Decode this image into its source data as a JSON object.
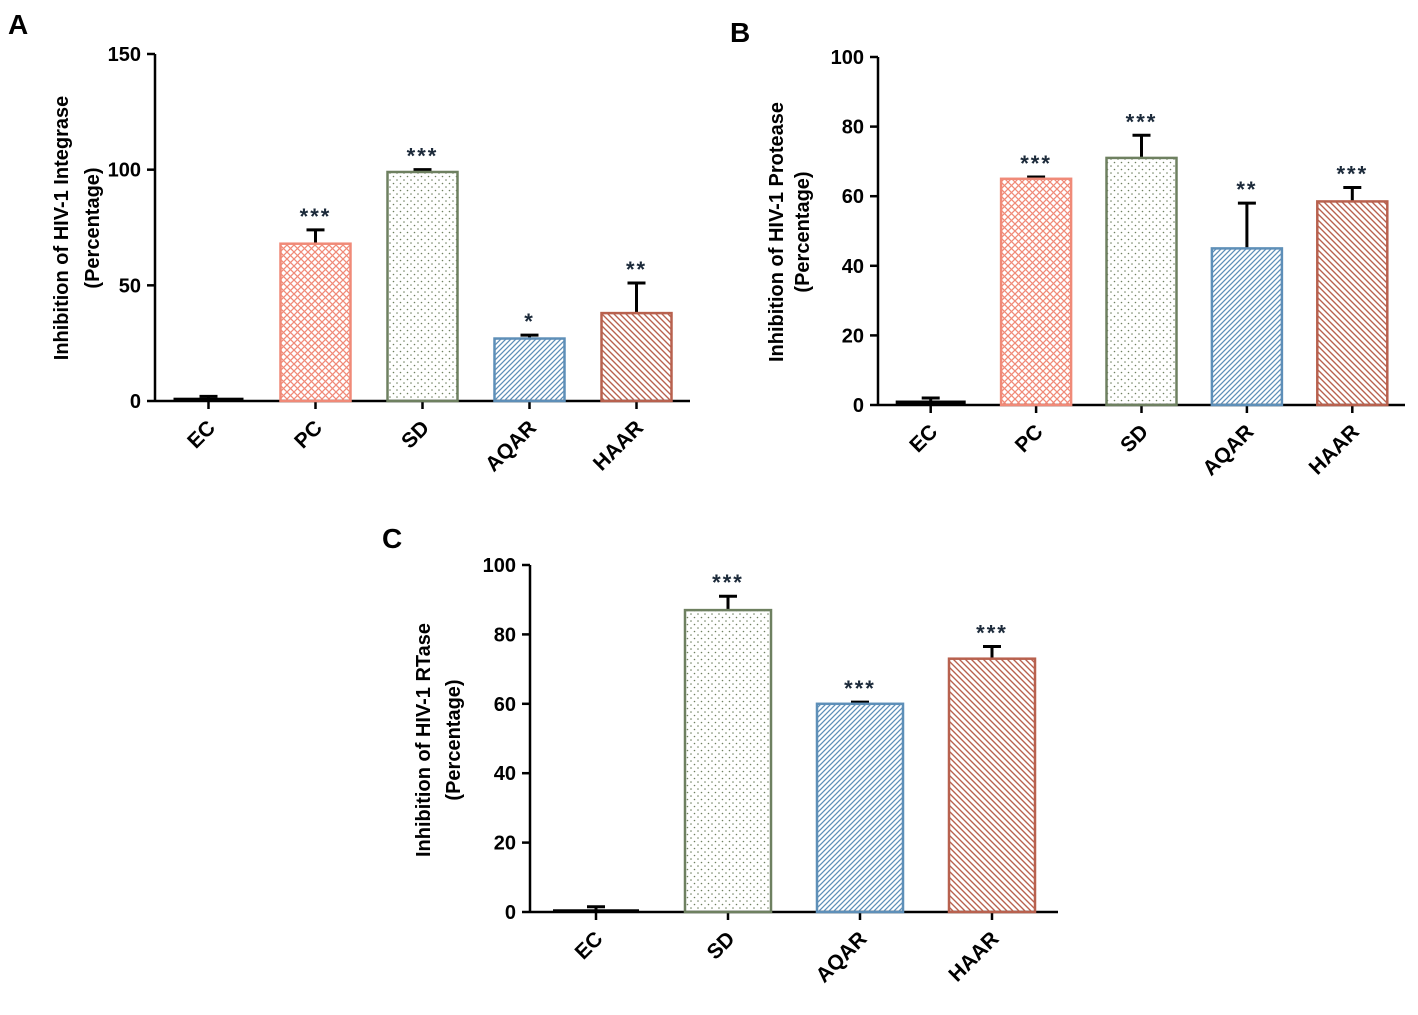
{
  "chart_data": [
    {
      "panel": "A",
      "type": "bar",
      "ylabel_line1": "Inhibition of HIV-1 Integrase",
      "ylabel_line2": "(Percentage)",
      "xlabel": "",
      "ylim": [
        0,
        150
      ],
      "yticks": [
        0,
        50,
        100,
        150
      ],
      "categories": [
        "EC",
        "PC",
        "SD",
        "AQAR",
        "HAAR"
      ],
      "values": [
        1,
        68,
        99,
        27,
        38
      ],
      "errors": [
        1,
        6,
        1,
        1.5,
        13
      ],
      "significance": [
        "",
        "***",
        "***",
        "*",
        "**"
      ],
      "patterns": [
        "solid",
        "crosshatch",
        "dots",
        "diag-dense",
        "diag"
      ],
      "colors": [
        "#000000",
        "#f08a78",
        "#6e8060",
        "#5e8fb8",
        "#b8614e"
      ]
    },
    {
      "panel": "B",
      "type": "bar",
      "ylabel_line1": "Inhibition of HIV-1 Protease",
      "ylabel_line2": "(Percentage)",
      "xlabel": "",
      "ylim": [
        0,
        100
      ],
      "yticks": [
        0,
        20,
        40,
        60,
        80,
        100
      ],
      "categories": [
        "EC",
        "PC",
        "SD",
        "AQAR",
        "HAAR"
      ],
      "values": [
        1,
        65,
        71,
        45,
        58.5
      ],
      "errors": [
        1,
        0.5,
        6.5,
        13,
        4
      ],
      "significance": [
        "",
        "***",
        "***",
        "**",
        "***"
      ],
      "patterns": [
        "solid",
        "crosshatch",
        "dots",
        "diag-dense",
        "diag"
      ],
      "colors": [
        "#000000",
        "#f08a78",
        "#6e8060",
        "#5e8fb8",
        "#b8614e"
      ]
    },
    {
      "panel": "C",
      "type": "bar",
      "ylabel_line1": "Inhibition of HIV-1 RTase",
      "ylabel_line2": "(Percentage)",
      "xlabel": "",
      "ylim": [
        0,
        100
      ],
      "yticks": [
        0,
        20,
        40,
        60,
        80,
        100
      ],
      "categories": [
        "EC",
        "SD",
        "AQAR",
        "HAAR"
      ],
      "values": [
        0.5,
        87,
        60,
        73
      ],
      "errors": [
        1,
        4,
        0.5,
        3.5
      ],
      "significance": [
        "",
        "***",
        "***",
        "***"
      ],
      "patterns": [
        "solid",
        "dots",
        "diag-dense",
        "diag"
      ],
      "colors": [
        "#000000",
        "#6e8060",
        "#5e8fb8",
        "#b8614e"
      ]
    }
  ]
}
